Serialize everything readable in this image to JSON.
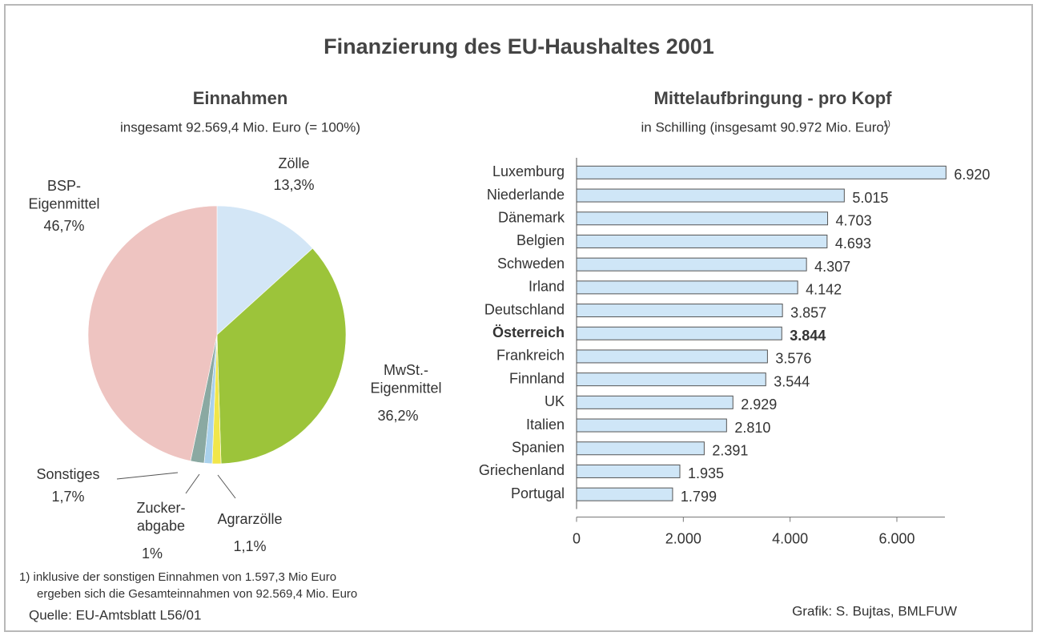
{
  "title": "Finanzierung des EU-Haushaltes 2001",
  "footnote": [
    "1) inklusive der sonstigen Einnahmen von 1.597,3 Mio Euro",
    "ergeben sich die Gesamteinnahmen von 92.569,4 Mio. Euro"
  ],
  "source": "Quelle: EU-Amtsblatt L56/01",
  "credit": "Grafik: S. Bujtas, BMLFUW",
  "chart_data": [
    {
      "type": "pie",
      "title": "Einnahmen",
      "subtitle": "insgesamt 92.569,4 Mio. Euro (= 100%)",
      "categories": [
        "Zölle",
        "MwSt.-\nEigenmittel",
        "Agrarzölle",
        "Zucker-\nabgabe",
        "Sonstiges",
        "BSP-\nEigenmittel"
      ],
      "values": [
        13.3,
        36.2,
        1.1,
        1,
        1.7,
        46.7
      ],
      "value_labels": [
        "13,3%",
        "36,2%",
        "1,1%",
        "1%",
        "1,7%",
        "46,7%"
      ],
      "colors": [
        "#d3e6f6",
        "#9cc43a",
        "#f1e64a",
        "#a9d1ec",
        "#8aa9a2",
        "#eec4c1"
      ]
    },
    {
      "type": "hbar",
      "title": "Mittelaufbringung - pro Kopf",
      "subtitle": "in Schilling (insgesamt 90.972  Mio. Euro)",
      "subtitle_note": "1)",
      "categories": [
        "Luxemburg",
        "Niederlande",
        "Dänemark",
        "Belgien",
        "Schweden",
        "Irland",
        "Deutschland",
        "Österreich",
        "Frankreich",
        "Finnland",
        "UK",
        "Italien",
        "Spanien",
        "Griechenland",
        "Portugal"
      ],
      "values": [
        6920,
        5015,
        4703,
        4693,
        4307,
        4142,
        3857,
        3844,
        3576,
        3544,
        2929,
        2810,
        2391,
        1935,
        1799
      ],
      "value_labels": [
        "6.920",
        "5.015",
        "4.703",
        "4.693",
        "4.307",
        "4.142",
        "3.857",
        "3.844",
        "3.576",
        "3.544",
        "2.929",
        "2.810",
        "2.391",
        "1.935",
        "1.799"
      ],
      "highlight": 7,
      "color": "#cfe6f7",
      "xlim": [
        0,
        6000
      ],
      "xticks": [
        0,
        {
          "value": 2000,
          "label": "2.000"
        },
        {
          "value": 4000,
          "label": "4.000"
        },
        {
          "value": 6000,
          "label": "6.000"
        }
      ]
    }
  ]
}
